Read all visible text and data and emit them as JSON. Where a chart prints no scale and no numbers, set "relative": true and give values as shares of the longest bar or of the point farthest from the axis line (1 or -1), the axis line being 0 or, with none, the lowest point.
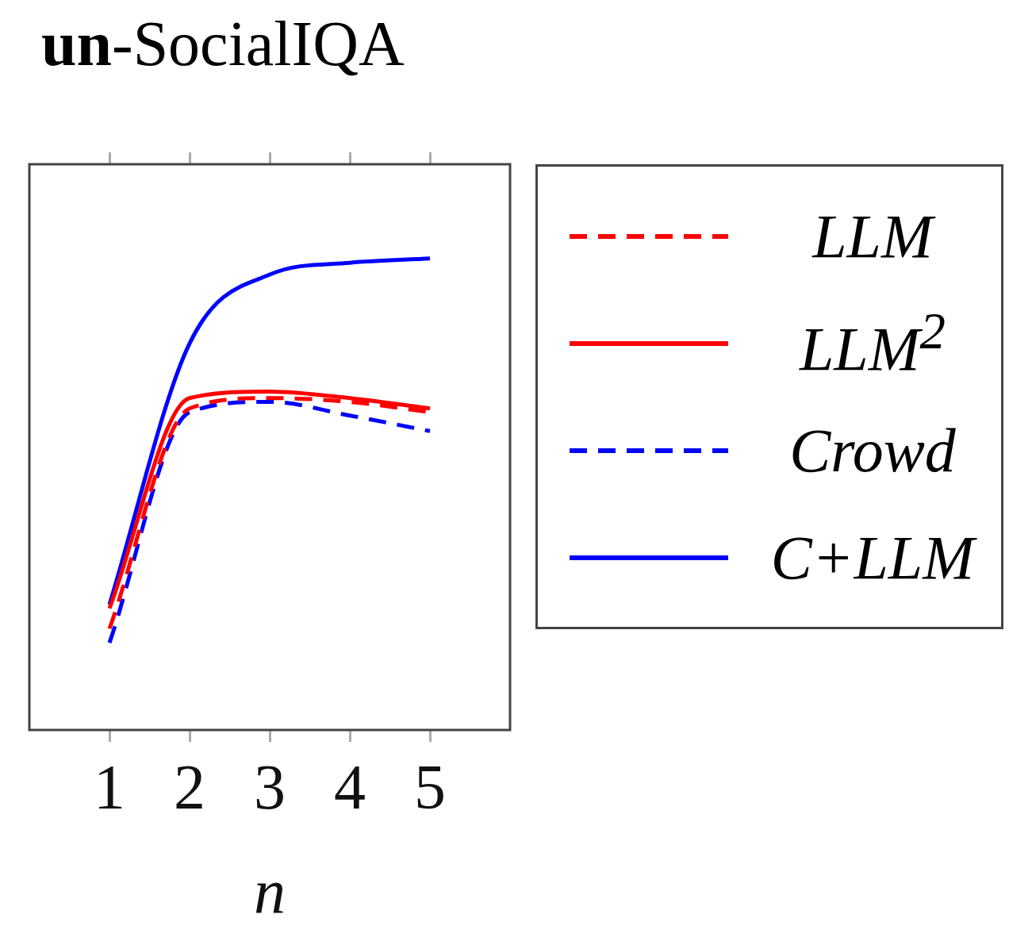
{
  "chart_data": {
    "type": "line",
    "title": "un-SocialIQA",
    "xlabel": "n",
    "relative": true,
    "x": [
      1,
      2,
      3,
      4,
      5
    ],
    "xlim": [
      0,
      6
    ],
    "xticks": [
      1,
      2,
      3,
      4,
      5
    ],
    "grid": false,
    "legend": "right",
    "marker": "none",
    "series": [
      {
        "name": "LLM",
        "color": "#ff0000",
        "line_style": "dashed",
        "values": [
          0.215,
          0.682,
          0.704,
          0.696,
          0.674
        ]
      },
      {
        "name": "LLM$^{2}$",
        "color": "#ff0000",
        "line_style": "solid",
        "values": [
          0.258,
          0.704,
          0.718,
          0.704,
          0.682
        ]
      },
      {
        "name": "Crowd",
        "color": "#0000ff",
        "line_style": "dashed",
        "values": [
          0.185,
          0.674,
          0.696,
          0.667,
          0.634
        ]
      },
      {
        "name": "C+LLM",
        "color": "#0000ff",
        "line_style": "solid",
        "values": [
          0.266,
          0.82,
          0.966,
          0.991,
          1
        ]
      }
    ]
  }
}
